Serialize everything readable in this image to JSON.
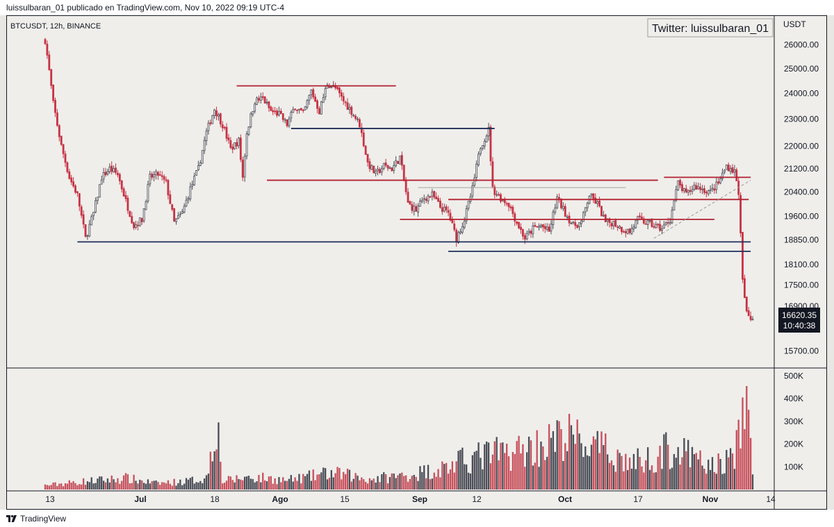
{
  "header": {
    "publish_line": "luissulbaran_01 publicado en TradingView.com, Nov 10, 2022 09:19 UTC-4"
  },
  "symbol_line": "BTCUSDT, 12h, BINANCE",
  "watermark": "Twitter: luissulbaran_01",
  "price_axis_unit": "USDT",
  "footer": {
    "brand": "TradingView"
  },
  "colors": {
    "up": "#4a4d56",
    "down": "#c73344",
    "support_line": "#1f2d57",
    "resistance_line": "#b3202f",
    "background": "#efeeeb"
  },
  "chart_data": {
    "type": "candlestick",
    "symbol": "BTCUSDT",
    "interval": "12h",
    "exchange": "BINANCE",
    "price_axis": {
      "ticks": [
        "26000.00",
        "25000.00",
        "24000.00",
        "23000.00",
        "22000.00",
        "21200.00",
        "20400.00",
        "19600.00",
        "18850.00",
        "18100.00",
        "17500.00",
        "16900.00",
        "15700.00"
      ],
      "range": [
        15300,
        26800
      ]
    },
    "volume_axis": {
      "ticks": [
        "500K",
        "400K",
        "300K",
        "200K",
        "100K"
      ],
      "range": [
        0,
        520000
      ]
    },
    "time_axis": {
      "labels": [
        "13",
        "Jul",
        "18",
        "Ago",
        "15",
        "Sep",
        "12",
        "Oct",
        "17",
        "Nov",
        "14"
      ]
    },
    "last_price": {
      "value": "16620.35",
      "countdown": "10:40:38"
    },
    "ohlc_waypoints": [
      [
        0,
        26200
      ],
      [
        4,
        23600
      ],
      [
        8,
        22000
      ],
      [
        12,
        20900
      ],
      [
        16,
        20300
      ],
      [
        20,
        18900
      ],
      [
        24,
        19700
      ],
      [
        28,
        20900
      ],
      [
        32,
        21200
      ],
      [
        36,
        21000
      ],
      [
        40,
        20100
      ],
      [
        44,
        19300
      ],
      [
        48,
        19500
      ],
      [
        52,
        20900
      ],
      [
        56,
        21000
      ],
      [
        60,
        20700
      ],
      [
        64,
        19400
      ],
      [
        68,
        19700
      ],
      [
        72,
        20500
      ],
      [
        76,
        21200
      ],
      [
        80,
        22500
      ],
      [
        84,
        23400
      ],
      [
        88,
        22800
      ],
      [
        92,
        21900
      ],
      [
        96,
        22200
      ],
      [
        98,
        20900
      ],
      [
        100,
        22500
      ],
      [
        104,
        23700
      ],
      [
        108,
        23800
      ],
      [
        112,
        23300
      ],
      [
        116,
        23200
      ],
      [
        120,
        22800
      ],
      [
        124,
        23500
      ],
      [
        128,
        23200
      ],
      [
        132,
        24100
      ],
      [
        136,
        23300
      ],
      [
        140,
        24400
      ],
      [
        144,
        24200
      ],
      [
        148,
        23700
      ],
      [
        152,
        23300
      ],
      [
        156,
        22800
      ],
      [
        160,
        21400
      ],
      [
        164,
        21000
      ],
      [
        168,
        21300
      ],
      [
        172,
        21200
      ],
      [
        176,
        21600
      ],
      [
        180,
        20000
      ],
      [
        184,
        19800
      ],
      [
        188,
        20200
      ],
      [
        192,
        20300
      ],
      [
        196,
        19900
      ],
      [
        200,
        19700
      ],
      [
        204,
        18900
      ],
      [
        208,
        19500
      ],
      [
        212,
        20500
      ],
      [
        216,
        22000
      ],
      [
        220,
        22600
      ],
      [
        222,
        20500
      ],
      [
        226,
        20200
      ],
      [
        230,
        20000
      ],
      [
        234,
        19400
      ],
      [
        238,
        18900
      ],
      [
        242,
        19200
      ],
      [
        246,
        19300
      ],
      [
        250,
        19100
      ],
      [
        254,
        20200
      ],
      [
        258,
        19700
      ],
      [
        262,
        19300
      ],
      [
        266,
        19400
      ],
      [
        270,
        20300
      ],
      [
        274,
        20000
      ],
      [
        278,
        19400
      ],
      [
        282,
        19400
      ],
      [
        286,
        19200
      ],
      [
        290,
        19100
      ],
      [
        294,
        19500
      ],
      [
        298,
        19400
      ],
      [
        302,
        19300
      ],
      [
        306,
        19200
      ],
      [
        310,
        19500
      ],
      [
        314,
        20700
      ],
      [
        318,
        20300
      ],
      [
        322,
        20600
      ],
      [
        326,
        20500
      ],
      [
        330,
        20400
      ],
      [
        334,
        20700
      ],
      [
        338,
        21300
      ],
      [
        342,
        21100
      ],
      [
        344,
        20400
      ],
      [
        346,
        17600
      ],
      [
        348,
        16700
      ],
      [
        350,
        16550
      ],
      [
        351,
        16620
      ]
    ],
    "volume_profile_k": [
      [
        0,
        20
      ],
      [
        20,
        40
      ],
      [
        40,
        55
      ],
      [
        55,
        30
      ],
      [
        70,
        40
      ],
      [
        80,
        55
      ],
      [
        85,
        360
      ],
      [
        88,
        40
      ],
      [
        100,
        60
      ],
      [
        110,
        55
      ],
      [
        120,
        45
      ],
      [
        130,
        60
      ],
      [
        140,
        80
      ],
      [
        150,
        70
      ],
      [
        160,
        50
      ],
      [
        170,
        60
      ],
      [
        180,
        70
      ],
      [
        190,
        90
      ],
      [
        200,
        110
      ],
      [
        210,
        150
      ],
      [
        220,
        170
      ],
      [
        230,
        180
      ],
      [
        240,
        200
      ],
      [
        250,
        230
      ],
      [
        260,
        260
      ],
      [
        270,
        210
      ],
      [
        280,
        180
      ],
      [
        290,
        130
      ],
      [
        300,
        150
      ],
      [
        310,
        200
      ],
      [
        320,
        160
      ],
      [
        330,
        110
      ],
      [
        340,
        150
      ],
      [
        345,
        250
      ],
      [
        347,
        460
      ],
      [
        349,
        420
      ],
      [
        351,
        60
      ]
    ],
    "horizontal_levels": [
      {
        "price": 24300,
        "from_bar": 95,
        "to_bar": 174,
        "color": "resistance"
      },
      {
        "price": 22650,
        "from_bar": 122,
        "to_bar": 223,
        "color": "support"
      },
      {
        "price": 20800,
        "from_bar": 110,
        "to_bar": 304,
        "color": "resistance"
      },
      {
        "price": 20550,
        "from_bar": 185,
        "to_bar": 288,
        "color": "thin"
      },
      {
        "price": 20150,
        "from_bar": 200,
        "to_bar": 349,
        "color": "resistance"
      },
      {
        "price": 19500,
        "from_bar": 176,
        "to_bar": 332,
        "color": "resistance"
      },
      {
        "price": 20900,
        "from_bar": 307,
        "to_bar": 350,
        "color": "resistance"
      },
      {
        "price": 18790,
        "from_bar": 16,
        "to_bar": 350,
        "color": "support"
      },
      {
        "price": 18500,
        "from_bar": 200,
        "to_bar": 350,
        "color": "support"
      }
    ],
    "trendlines": [
      {
        "from": [
          302,
          18900
        ],
        "to": [
          350,
          20800
        ],
        "style": "dashed"
      }
    ]
  }
}
